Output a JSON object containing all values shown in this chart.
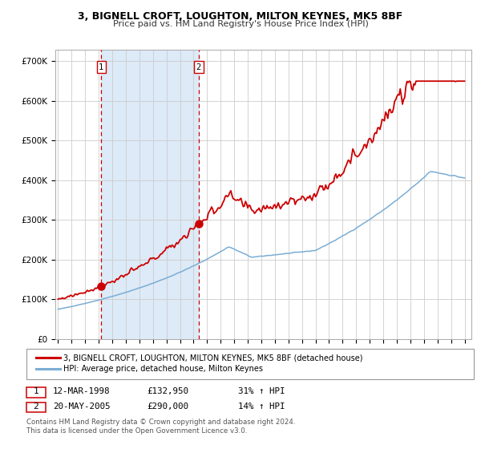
{
  "title": "3, BIGNELL CROFT, LOUGHTON, MILTON KEYNES, MK5 8BF",
  "subtitle": "Price paid vs. HM Land Registry's House Price Index (HPI)",
  "legend_line1": "3, BIGNELL CROFT, LOUGHTON, MILTON KEYNES, MK5 8BF (detached house)",
  "legend_line2": "HPI: Average price, detached house, Milton Keynes",
  "note1": "Contains HM Land Registry data © Crown copyright and database right 2024.",
  "note2": "This data is licensed under the Open Government Licence v3.0.",
  "transaction1_date": "12-MAR-1998",
  "transaction1_price": "£132,950",
  "transaction1_hpi": "31% ↑ HPI",
  "transaction1_year": 1998.19,
  "transaction1_value": 132950,
  "transaction2_date": "20-MAY-2005",
  "transaction2_price": "£290,000",
  "transaction2_hpi": "14% ↑ HPI",
  "transaction2_year": 2005.38,
  "transaction2_value": 290000,
  "red_line_color": "#cc0000",
  "blue_line_color": "#7aadd4",
  "bg_shaded_color": "#ddeaf7",
  "grid_color": "#cccccc",
  "yticks": [
    0,
    100000,
    200000,
    300000,
    400000,
    500000,
    600000,
    700000
  ],
  "ylabels": [
    "£0",
    "£100K",
    "£200K",
    "£300K",
    "£400K",
    "£500K",
    "£600K",
    "£700K"
  ],
  "ylim": [
    0,
    730000
  ],
  "xlim_start": 1994.8,
  "xlim_end": 2025.5
}
